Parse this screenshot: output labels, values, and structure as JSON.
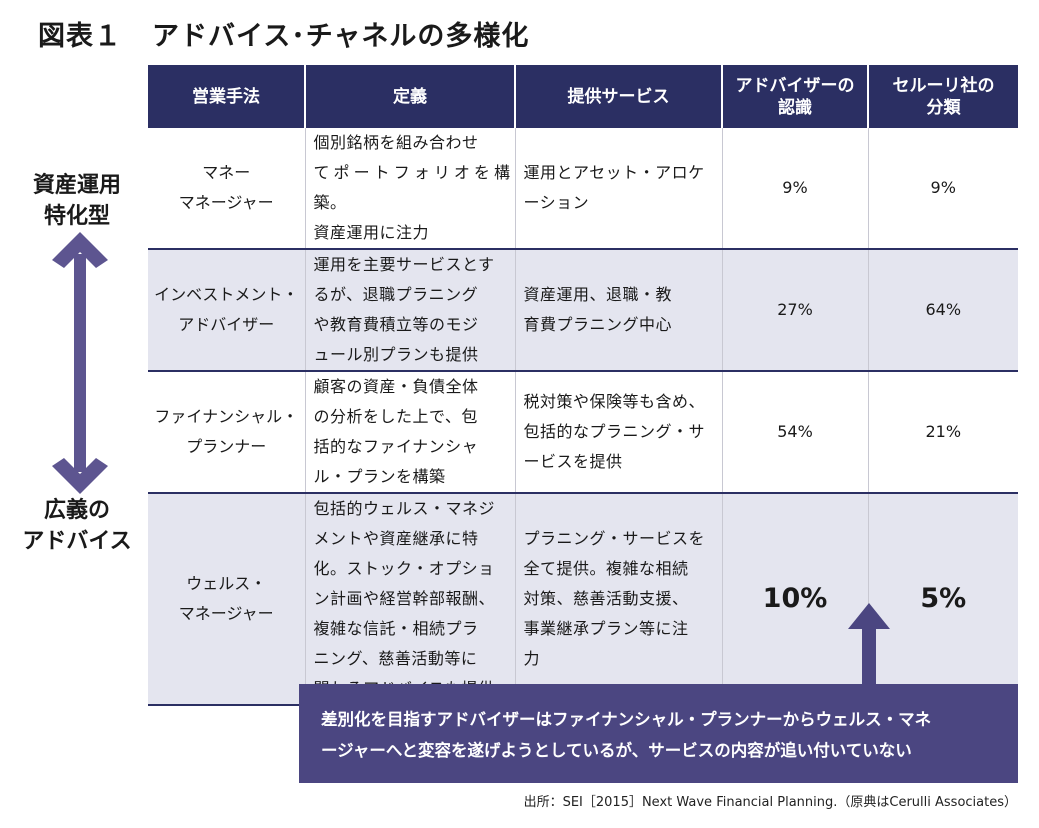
{
  "title": {
    "figure_no": "図表１",
    "text": "アドバイス･チャネルの多様化"
  },
  "side_labels": {
    "top": "資産運用\n特化型",
    "bottom": "広義の\nアドバイス"
  },
  "table": {
    "headers": [
      "営業手法",
      "定義",
      "提供サービス",
      "アドバイザーの\n認識",
      "セルーリ社の\n分類"
    ],
    "rows": [
      {
        "name": "マネー\nマネージャー",
        "definition": "個別銘柄を組み合わせ\nてポートフォリオを構築。\n資産運用に注力",
        "service": "運用とアセット・アロケ\nーション",
        "advisor_pct": "9%",
        "cerulli_pct": "9%"
      },
      {
        "name": "インベストメント・\nアドバイザー",
        "definition": "運用を主要サービスとす\nるが、退職プラニング\nや教育費積立等のモジ\nュール別プランも提供",
        "service": "資産運用、退職・教\n育費プラニング中心",
        "advisor_pct": "27%",
        "cerulli_pct": "64%"
      },
      {
        "name": "ファイナンシャル・\nプランナー",
        "definition": "顧客の資産・負債全体\nの分析をした上で、包\n括的なファイナンシャ\nル・プランを構築",
        "service": "税対策や保険等も含め、\n包括的なプラニング・サ\nービスを提供",
        "advisor_pct": "54%",
        "cerulli_pct": "21%"
      },
      {
        "name": "ウェルス・\nマネージャー",
        "definition": "包括的ウェルス・マネジ\nメントや資産継承に特\n化。ストック・オプショ\nン計画や経営幹部報酬、\n複雑な信託・相続プラ\nニング、慈善活動等に\n関わるアドバイスも提供",
        "service": "プラニング・サービスを\n全て提供。複雑な相続\n対策、慈善活動支援、\n事業継承プラン等に注\n力",
        "advisor_pct": "10%",
        "cerulli_pct": "5%"
      }
    ]
  },
  "callout": "差別化を目指すアドバイザーはファイナンシャル・プランナーからウェルス・マネ\nージャーへと変容を遂げようとしているが、サービスの内容が追い付いていない",
  "source": "出所：SEI［2015］Next Wave Financial Planning.（原典はCerulli Associates）",
  "colors": {
    "header_bg": "#2b2f63",
    "callout_bg": "#4b4681",
    "arrow": "#5d5590",
    "stripe": "#e4e5ef"
  }
}
